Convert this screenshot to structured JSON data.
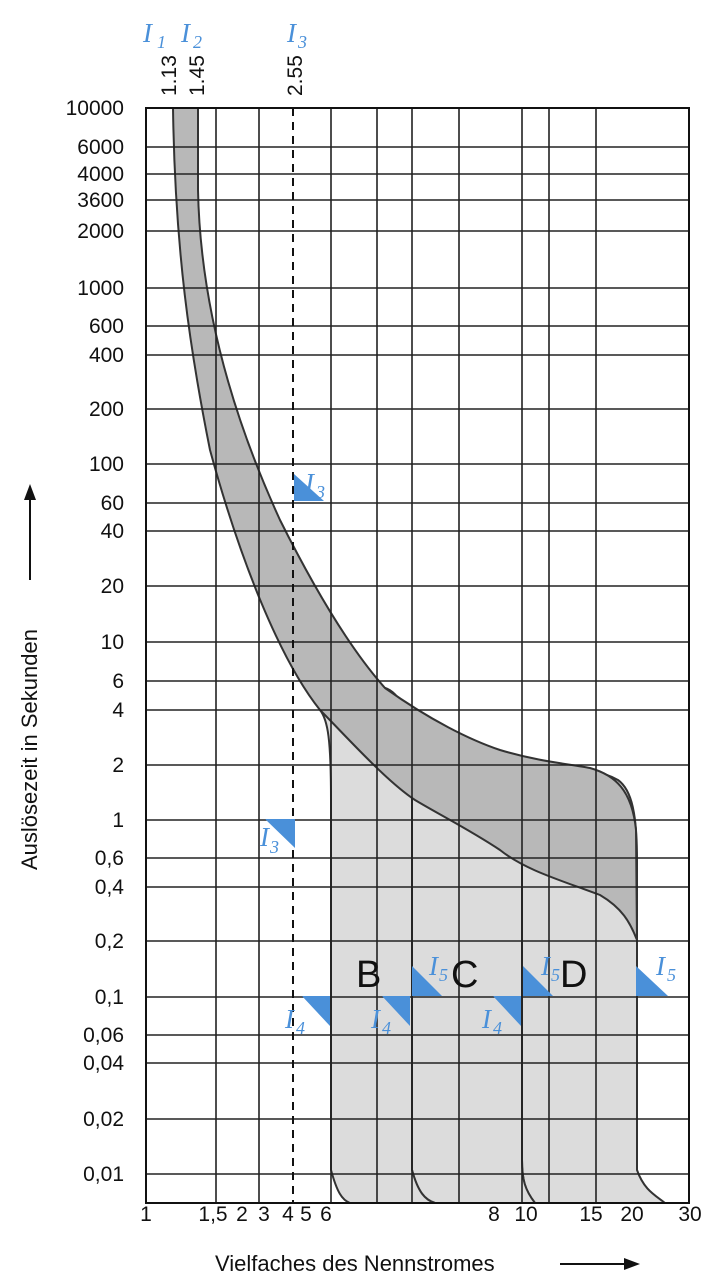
{
  "chart_data": {
    "type": "line",
    "xlabel": "Vielfaches des Nennstromes",
    "ylabel": "Auslösezeit in Sekunden",
    "x_tick_labels": [
      "1",
      "1,5",
      "2",
      "3",
      "4",
      "5",
      "6",
      "8",
      "10",
      "15",
      "20",
      "30"
    ],
    "y_tick_labels": [
      "10000",
      "6000",
      "4000",
      "3600",
      "2000",
      "1000",
      "600",
      "400",
      "200",
      "100",
      "60",
      "40",
      "20",
      "10",
      "6",
      "4",
      "2",
      "1",
      "0,6",
      "0,4",
      "0,2",
      "0,1",
      "0,06",
      "0,04",
      "0,02",
      "0,01"
    ],
    "ylim": [
      0.01,
      10000
    ],
    "y_scale": "log",
    "top_markers": [
      {
        "symbol": "I",
        "sub": "1",
        "value": "1.13"
      },
      {
        "symbol": "I",
        "sub": "2",
        "value": "1.45"
      },
      {
        "symbol": "I",
        "sub": "3",
        "value": "2.55"
      }
    ],
    "categories": [
      "B",
      "C",
      "D"
    ],
    "threshold_labels": [
      {
        "symbol": "I",
        "sub": "3"
      },
      {
        "symbol": "I",
        "sub": "3"
      },
      {
        "symbol": "I",
        "sub": "4"
      },
      {
        "symbol": "I",
        "sub": "4"
      },
      {
        "symbol": "I",
        "sub": "4"
      },
      {
        "symbol": "I",
        "sub": "5"
      },
      {
        "symbol": "I",
        "sub": "5"
      },
      {
        "symbol": "I",
        "sub": "5"
      }
    ],
    "thermal_band": {
      "upper_boundary": [
        [
          1.45,
          10000
        ],
        [
          1.7,
          1000
        ],
        [
          2.3,
          100
        ],
        [
          3.5,
          20
        ],
        [
          5,
          6
        ],
        [
          8,
          3
        ],
        [
          10,
          2.5
        ],
        [
          15,
          2
        ]
      ],
      "lower_boundary": [
        [
          1.13,
          10000
        ],
        [
          1.5,
          600
        ],
        [
          2.5,
          40
        ],
        [
          4,
          6
        ],
        [
          5.3,
          3
        ],
        [
          8,
          1.2
        ],
        [
          10,
          0.6
        ],
        [
          15,
          0.25
        ]
      ]
    },
    "magnetic_trip": [
      {
        "name": "B",
        "I4": 3,
        "I5": 5
      },
      {
        "name": "C",
        "I4": 5,
        "I5": 10
      },
      {
        "name": "D",
        "I4": 10,
        "I5": 20
      }
    ],
    "colors": {
      "band": "#b8b8b8",
      "trip_region": "#dcdcdc",
      "marker": "#4a90d9",
      "grid": "#222222"
    },
    "grid": true
  }
}
